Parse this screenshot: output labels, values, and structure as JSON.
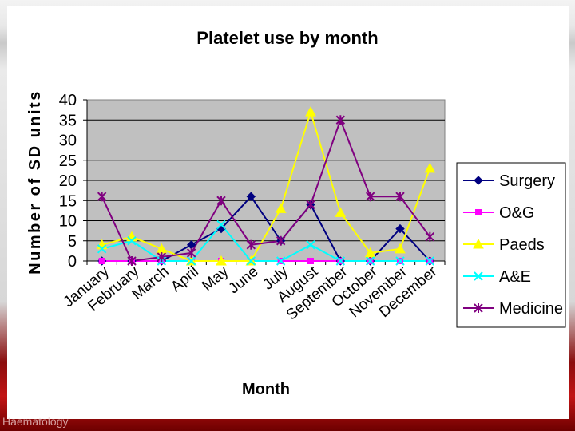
{
  "footer": {
    "text": "Haematology"
  },
  "chart_data": {
    "type": "line",
    "title": "Platelet use by month",
    "xlabel": "Month",
    "ylabel": "Number of SD units",
    "ylim": [
      0,
      40
    ],
    "yticks": [
      0,
      5,
      10,
      15,
      20,
      25,
      30,
      35,
      40
    ],
    "grid": true,
    "legend_position": "right",
    "categories": [
      "January",
      "February",
      "March",
      "April",
      "May",
      "June",
      "July",
      "August",
      "September",
      "October",
      "November",
      "December"
    ],
    "series": [
      {
        "name": "Surgery",
        "color": "#000080",
        "marker": "diamond",
        "values": [
          0,
          0,
          0,
          4,
          8,
          16,
          5,
          14,
          0,
          0,
          8,
          0
        ]
      },
      {
        "name": "O&G",
        "color": "#ff00ff",
        "marker": "square",
        "values": [
          0,
          0,
          0,
          0,
          0,
          0,
          0,
          0,
          0,
          0,
          0,
          0
        ]
      },
      {
        "name": "Paeds",
        "color": "#ffff00",
        "marker": "triangle",
        "values": [
          4,
          6,
          3,
          0,
          0,
          0,
          13,
          37,
          12,
          2,
          3,
          23
        ]
      },
      {
        "name": "A&E",
        "color": "#00ffff",
        "marker": "x",
        "values": [
          3,
          5,
          0,
          0,
          9,
          0,
          0,
          4,
          0,
          0,
          0,
          0
        ]
      },
      {
        "name": "Medicine",
        "color": "#800080",
        "marker": "star",
        "values": [
          16,
          0,
          1,
          2,
          15,
          4,
          5,
          14,
          35,
          16,
          16,
          6
        ]
      }
    ]
  }
}
